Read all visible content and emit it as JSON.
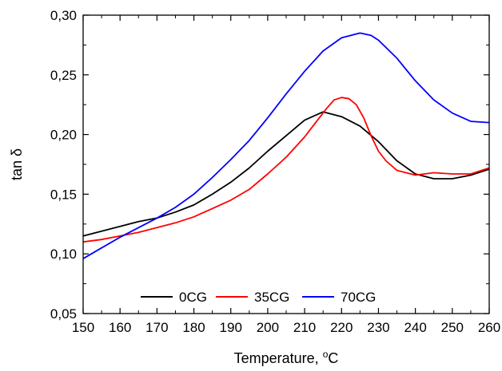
{
  "chart_data": {
    "type": "line",
    "xlabel_main": "Temperature, ",
    "xlabel_sup": "o",
    "xlabel_unit": "C",
    "ylabel": "tan δ",
    "xlim": [
      150,
      260
    ],
    "ylim": [
      0.05,
      0.3
    ],
    "x_ticks": [
      150,
      160,
      170,
      180,
      190,
      200,
      210,
      220,
      230,
      240,
      250,
      260
    ],
    "x_tick_labels": [
      "150",
      "160",
      "170",
      "180",
      "190",
      "200",
      "210",
      "220",
      "230",
      "240",
      "250",
      "260"
    ],
    "y_ticks": [
      0.05,
      0.1,
      0.15,
      0.2,
      0.25,
      0.3
    ],
    "y_tick_labels": [
      "0,05",
      "0,10",
      "0,15",
      "0,20",
      "0,25",
      "0,30"
    ],
    "grid": false,
    "legend_position": "bottom-center",
    "series": [
      {
        "name": "0CG",
        "color": "#000000",
        "x": [
          150,
          155,
          160,
          165,
          170,
          175,
          180,
          185,
          190,
          195,
          200,
          205,
          210,
          215,
          220,
          225,
          230,
          235,
          240,
          245,
          250,
          255,
          260
        ],
        "y": [
          0.115,
          0.119,
          0.123,
          0.127,
          0.13,
          0.135,
          0.141,
          0.15,
          0.16,
          0.172,
          0.186,
          0.199,
          0.212,
          0.219,
          0.215,
          0.207,
          0.194,
          0.178,
          0.167,
          0.163,
          0.163,
          0.166,
          0.171
        ]
      },
      {
        "name": "35CG",
        "color": "#ff0000",
        "x": [
          150,
          155,
          160,
          165,
          170,
          175,
          180,
          185,
          190,
          195,
          200,
          205,
          210,
          213,
          216,
          218,
          220,
          222,
          224,
          226,
          228,
          230,
          232,
          235,
          240,
          245,
          250,
          255,
          260
        ],
        "y": [
          0.11,
          0.112,
          0.115,
          0.118,
          0.122,
          0.126,
          0.131,
          0.138,
          0.145,
          0.154,
          0.167,
          0.181,
          0.198,
          0.21,
          0.222,
          0.229,
          0.231,
          0.23,
          0.225,
          0.214,
          0.199,
          0.186,
          0.178,
          0.17,
          0.166,
          0.168,
          0.167,
          0.167,
          0.172
        ]
      },
      {
        "name": "70CG",
        "color": "#0000ff",
        "x": [
          150,
          155,
          160,
          165,
          170,
          175,
          180,
          185,
          190,
          195,
          200,
          205,
          210,
          215,
          220,
          225,
          228,
          230,
          235,
          240,
          245,
          250,
          255,
          260
        ],
        "y": [
          0.096,
          0.105,
          0.114,
          0.122,
          0.13,
          0.139,
          0.15,
          0.164,
          0.179,
          0.195,
          0.214,
          0.234,
          0.253,
          0.27,
          0.281,
          0.285,
          0.283,
          0.279,
          0.264,
          0.245,
          0.229,
          0.218,
          0.211,
          0.21
        ]
      }
    ]
  }
}
